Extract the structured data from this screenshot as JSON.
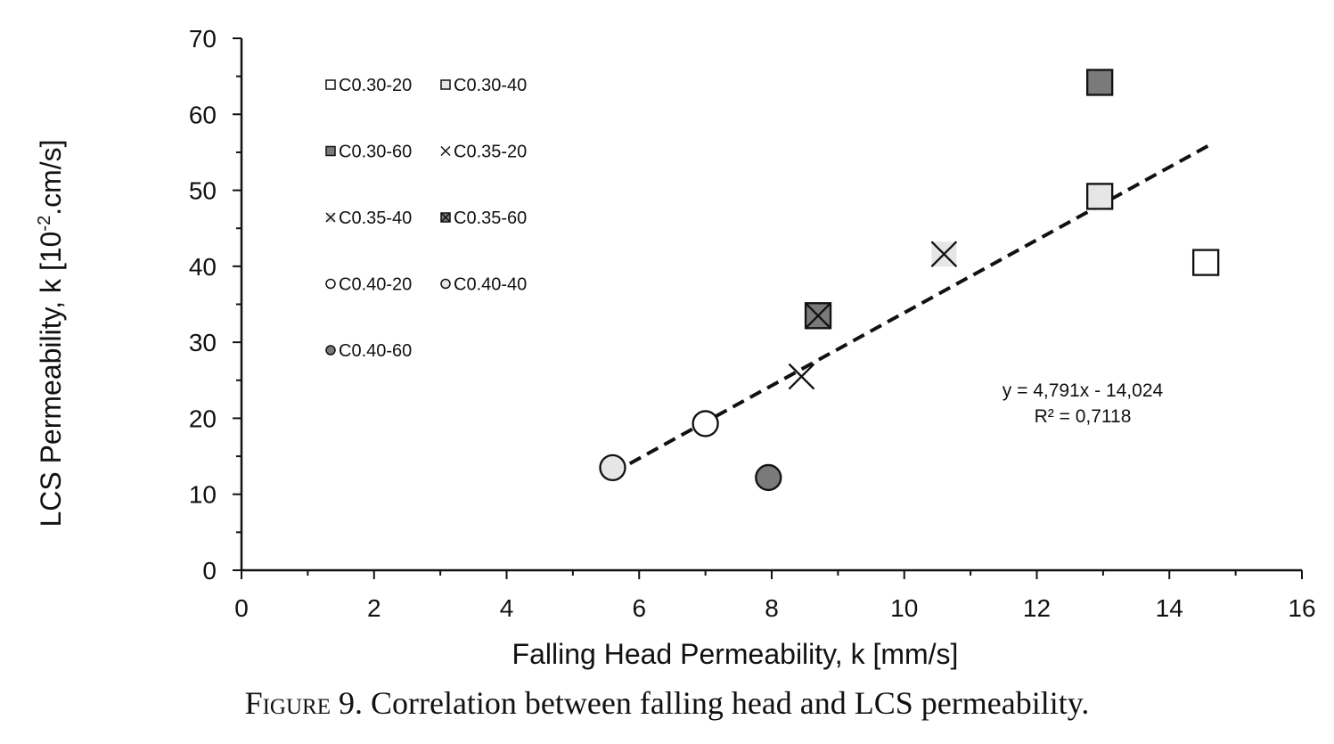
{
  "chart_data": {
    "type": "scatter",
    "xlabel": "Falling Head Permeability, k [mm/s]",
    "ylabel_parts": [
      "LCS Permeability, k [10",
      "-2",
      ".cm/s]"
    ],
    "xlim": [
      0,
      16
    ],
    "ylim": [
      0,
      70
    ],
    "xticks": [
      "0",
      "2",
      "4",
      "6",
      "8",
      "10",
      "12",
      "14",
      "16"
    ],
    "yticks": [
      "0",
      "10",
      "20",
      "30",
      "40",
      "50",
      "60",
      "70"
    ],
    "grid": false,
    "legend_position": "top-left",
    "series": [
      {
        "name": "C0.30-20",
        "marker": "square",
        "fill": "#ffffff",
        "x": 14.55,
        "y": 40.5
      },
      {
        "name": "C0.30-40",
        "marker": "square",
        "fill": "#e6e6e6",
        "x": 12.95,
        "y": 49.2
      },
      {
        "name": "C0.30-60",
        "marker": "square",
        "fill": "#7a7a7a",
        "x": 12.95,
        "y": 64.2
      },
      {
        "name": "C0.35-20",
        "marker": "cross",
        "fill": "#ffffff",
        "x": 8.45,
        "y": 25.5
      },
      {
        "name": "C0.35-40",
        "marker": "cross",
        "fill": "#e6e6e6",
        "x": 10.6,
        "y": 41.6
      },
      {
        "name": "C0.35-60",
        "marker": "square-cross",
        "fill": "#7a7a7a",
        "x": 8.7,
        "y": 33.5
      },
      {
        "name": "C0.40-20",
        "marker": "circle",
        "fill": "#ffffff",
        "x": 7.0,
        "y": 19.3
      },
      {
        "name": "C0.40-40",
        "marker": "circle",
        "fill": "#e6e6e6",
        "x": 5.6,
        "y": 13.5
      },
      {
        "name": "C0.40-60",
        "marker": "circle",
        "fill": "#7a7a7a",
        "x": 7.95,
        "y": 12.2
      }
    ],
    "trendline": {
      "slope": 4.791,
      "intercept": -14.024,
      "x_range": [
        5.6,
        14.6
      ],
      "style": "dashed"
    },
    "equation": "y = 4,791x - 14,024",
    "r_squared": "R² = 0,7118"
  },
  "caption": {
    "figure_word": "Figure",
    "number": "9.",
    "text": "Correlation between falling head and LCS permeability."
  }
}
